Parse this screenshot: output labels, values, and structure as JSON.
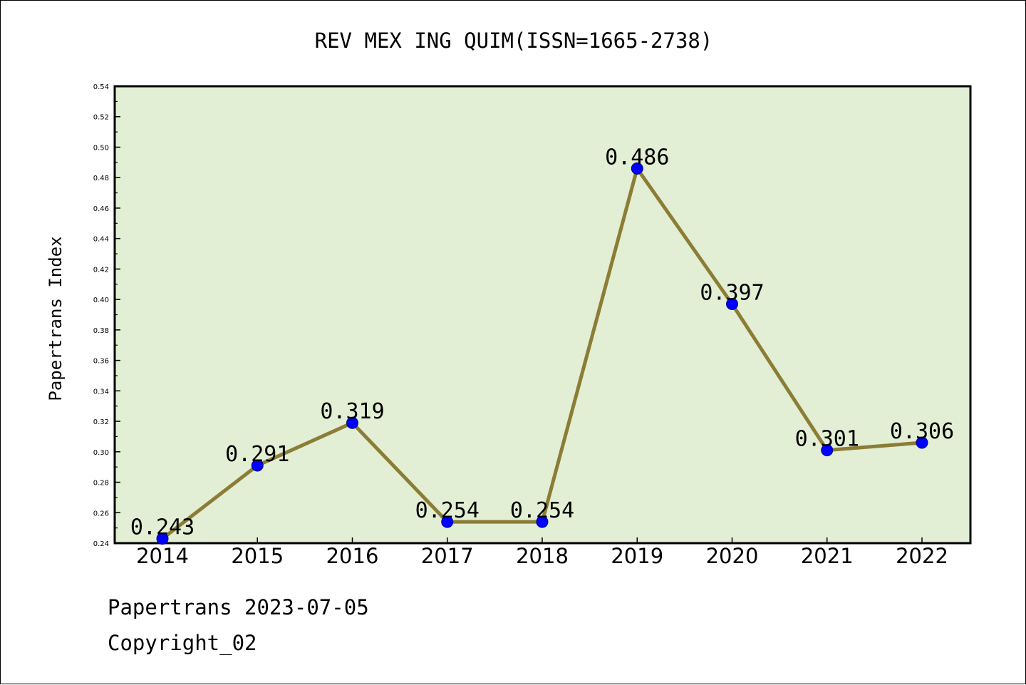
{
  "chart_data": {
    "type": "line",
    "title": "REV MEX ING QUIM(ISSN=1665-2738)",
    "xlabel": "",
    "ylabel": "Papertrans Index",
    "categories": [
      "2014",
      "2015",
      "2016",
      "2017",
      "2018",
      "2019",
      "2020",
      "2021",
      "2022"
    ],
    "values": [
      0.243,
      0.291,
      0.319,
      0.254,
      0.254,
      0.486,
      0.397,
      0.301,
      0.306
    ],
    "data_labels": [
      "0.243",
      "0.291",
      "0.319",
      "0.254",
      "0.254",
      "0.486",
      "0.397",
      "0.301",
      "0.306"
    ],
    "ylim": [
      0.24,
      0.54
    ],
    "yticks": [
      "0.24",
      "0.26",
      "0.28",
      "0.30",
      "0.32",
      "0.34",
      "0.36",
      "0.38",
      "0.40",
      "0.42",
      "0.44",
      "0.46",
      "0.48",
      "0.50",
      "0.52",
      "0.54"
    ],
    "grid": false,
    "legend": "none",
    "colors": {
      "plot_background": "#e2efd4",
      "line": "#8b7d35",
      "marker": "#0000ff"
    }
  },
  "footer": {
    "line1": "Papertrans 2023-07-05",
    "line2": "Copyright_02"
  }
}
